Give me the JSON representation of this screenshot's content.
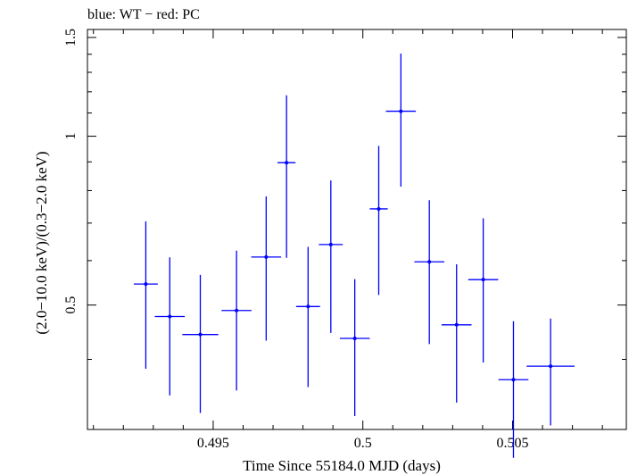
{
  "chart_data": {
    "type": "scatter",
    "title": "blue: WT − red: PC",
    "xlabel": "Time Since 55184.0 MJD (days)",
    "ylabel": "(2.0−10.0 keV)/(0.3−2.0 keV)",
    "xlim": [
      0.4908,
      0.5088
    ],
    "ylim": [
      0.3,
      1.55
    ],
    "log_y": true,
    "x_ticks": [
      {
        "value": 0.495,
        "label": "0.495"
      },
      {
        "value": 0.5,
        "label": "0.5"
      },
      {
        "value": 0.505,
        "label": "0.505"
      }
    ],
    "y_ticks": [
      {
        "value": 0.5,
        "label": "0.5"
      },
      {
        "value": 1,
        "label": "1"
      },
      {
        "value": 1.5,
        "label": "1.5"
      }
    ],
    "grid": false,
    "series": [
      {
        "color": "#0000ff",
        "points": [
          {
            "x": 0.49275,
            "xerr": 0.0004,
            "y": 0.545,
            "ylo": 0.385,
            "yhi": 0.705
          },
          {
            "x": 0.49355,
            "xerr": 0.0005,
            "y": 0.477,
            "ylo": 0.345,
            "yhi": 0.608
          },
          {
            "x": 0.49457,
            "xerr": 0.0006,
            "y": 0.443,
            "ylo": 0.321,
            "yhi": 0.566
          },
          {
            "x": 0.49578,
            "xerr": 0.0005,
            "y": 0.489,
            "ylo": 0.352,
            "yhi": 0.625
          },
          {
            "x": 0.49677,
            "xerr": 0.0005,
            "y": 0.609,
            "ylo": 0.432,
            "yhi": 0.781
          },
          {
            "x": 0.49745,
            "xerr": 0.0003,
            "y": 0.897,
            "ylo": 0.607,
            "yhi": 1.183
          },
          {
            "x": 0.49817,
            "xerr": 0.0004,
            "y": 0.497,
            "ylo": 0.357,
            "yhi": 0.635
          },
          {
            "x": 0.49893,
            "xerr": 0.0004,
            "y": 0.641,
            "ylo": 0.446,
            "yhi": 0.834
          },
          {
            "x": 0.49973,
            "xerr": 0.0005,
            "y": 0.436,
            "ylo": 0.317,
            "yhi": 0.556
          },
          {
            "x": 0.50053,
            "xerr": 0.0003,
            "y": 0.742,
            "ylo": 0.521,
            "yhi": 0.961
          },
          {
            "x": 0.50127,
            "xerr": 0.0005,
            "y": 1.108,
            "ylo": 0.813,
            "yhi": 1.404
          },
          {
            "x": 0.50222,
            "xerr": 0.0005,
            "y": 0.597,
            "ylo": 0.426,
            "yhi": 0.769
          },
          {
            "x": 0.50313,
            "xerr": 0.0005,
            "y": 0.461,
            "ylo": 0.335,
            "yhi": 0.591
          },
          {
            "x": 0.50402,
            "xerr": 0.0005,
            "y": 0.555,
            "ylo": 0.395,
            "yhi": 0.714
          },
          {
            "x": 0.50503,
            "xerr": 0.0005,
            "y": 0.368,
            "ylo": 0.267,
            "yhi": 0.468
          },
          {
            "x": 0.50627,
            "xerr": 0.0008,
            "y": 0.389,
            "ylo": 0.305,
            "yhi": 0.473
          }
        ]
      }
    ]
  }
}
